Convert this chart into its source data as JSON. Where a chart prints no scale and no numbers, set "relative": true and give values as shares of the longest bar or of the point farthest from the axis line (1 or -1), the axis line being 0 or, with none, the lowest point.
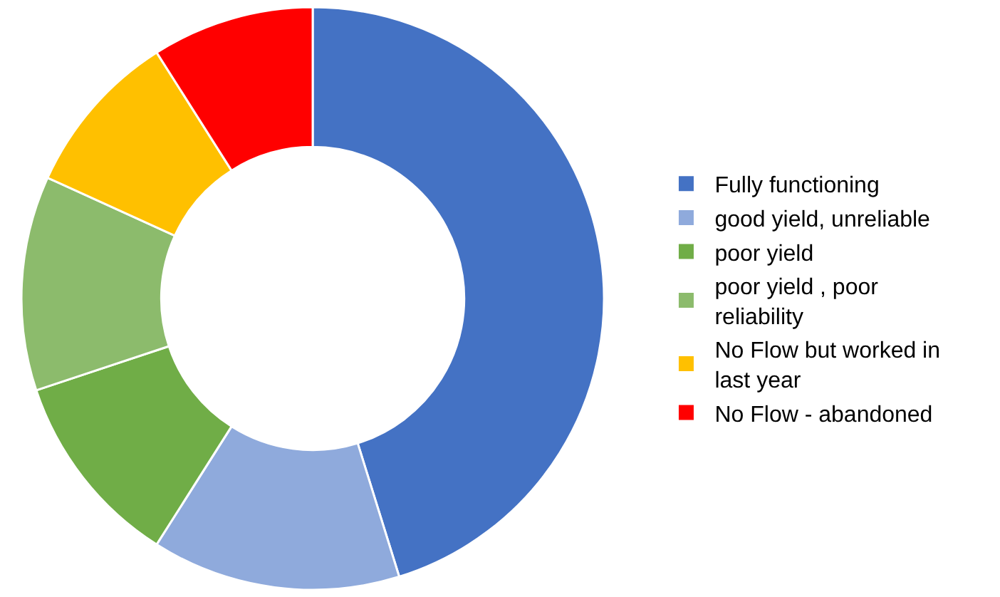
{
  "chart_data": {
    "type": "donut",
    "relative": true,
    "categories": [
      "Fully functioning",
      "good yield, unreliable",
      "poor yield",
      "poor yield , poor reliability",
      "No Flow but worked in last year",
      "No Flow - abandoned"
    ],
    "values": [
      45.2,
      13.8,
      10.9,
      11.9,
      9.2,
      9.0
    ],
    "colors": [
      "#4472c4",
      "#8faadc",
      "#70ad47",
      "#8cbb6c",
      "#ffc000",
      "#ff0000"
    ],
    "legend": "right"
  }
}
